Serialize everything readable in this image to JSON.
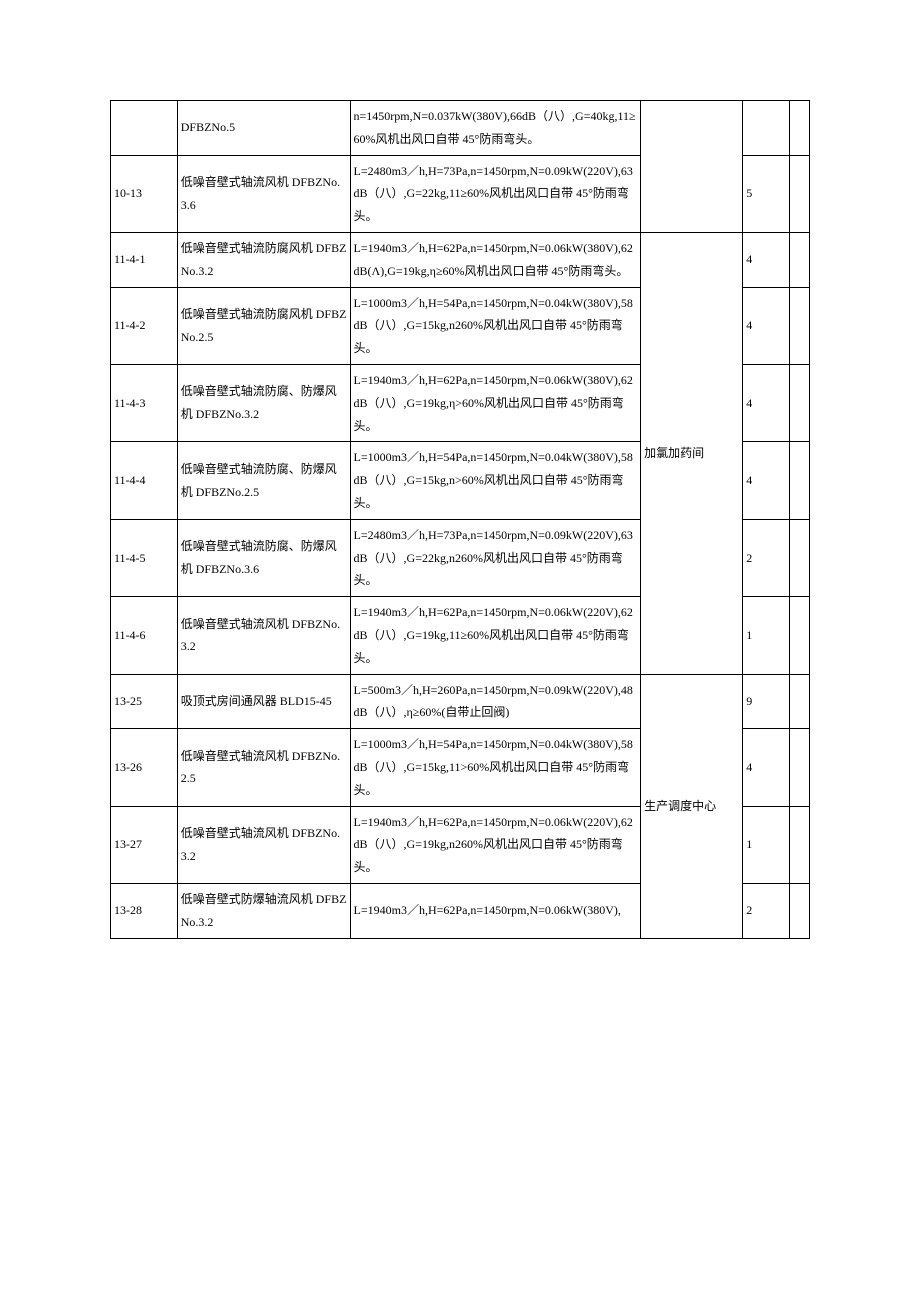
{
  "table": {
    "columns": [
      {
        "class": "col1",
        "width": "8.5%"
      },
      {
        "class": "col2",
        "width": "22%"
      },
      {
        "class": "col3",
        "width": "37%"
      },
      {
        "class": "col4",
        "width": "13%"
      },
      {
        "class": "col5",
        "width": "6%"
      },
      {
        "class": "col6",
        "width": "2.5%"
      }
    ],
    "rows": [
      {
        "cells": [
          {
            "text": "",
            "col": 1
          },
          {
            "text": "DFBZNo.5",
            "col": 2
          },
          {
            "text": "n=1450rpm,N=0.037kW(380V),66dB（八）,G=40kg,11≥60%风机出风口自带 45°防雨弯头。",
            "col": 3
          },
          {
            "text": "",
            "col": 4,
            "rowspan": 2
          },
          {
            "text": "",
            "col": 5
          },
          {
            "text": "",
            "col": 6
          }
        ]
      },
      {
        "cells": [
          {
            "text": "10-13",
            "col": 1
          },
          {
            "text": "低噪音壁式轴流风机 DFBZNo.3.6",
            "col": 2
          },
          {
            "text": "L=2480m3／h,H=73Pa,n=1450rpm,N=0.09kW(220V),63dB（八）,G=22kg,11≥60%风机出风口自带 45°防雨弯头。",
            "col": 3
          },
          {
            "text": "5",
            "col": 5
          },
          {
            "text": "",
            "col": 6
          }
        ]
      },
      {
        "cells": [
          {
            "text": "11-4-1",
            "col": 1
          },
          {
            "text": "低噪音壁式轴流防腐风机 DFBZNo.3.2",
            "col": 2
          },
          {
            "text": "L=1940m3／h,H=62Pa,n=1450rpm,N=0.06kW(380V),62dB(Λ),G=19kg,η≥60%风机出风口自带 45°防雨弯头。",
            "col": 3
          },
          {
            "text": "加氯加药间",
            "col": 4,
            "rowspan": 6
          },
          {
            "text": "4",
            "col": 5
          },
          {
            "text": "",
            "col": 6
          }
        ]
      },
      {
        "cells": [
          {
            "text": "11-4-2",
            "col": 1
          },
          {
            "text": "低噪音壁式轴流防腐风机 DFBZNo.2.5",
            "col": 2
          },
          {
            "text": "L=1000m3／h,H=54Pa,n=1450rpm,N=0.04kW(380V),58dB（八）,G=15kg,n260%风机出风口自带 45°防雨弯头。",
            "col": 3
          },
          {
            "text": "4",
            "col": 5
          },
          {
            "text": "",
            "col": 6
          }
        ]
      },
      {
        "cells": [
          {
            "text": "11-4-3",
            "col": 1
          },
          {
            "text": "低噪音壁式轴流防腐、防爆风机 DFBZNo.3.2",
            "col": 2
          },
          {
            "text": "L=1940m3／h,H=62Pa,n=1450rpm,N=0.06kW(380V),62dB（八）,G=19kg,η>60%风机出风口自带 45°防雨弯头。",
            "col": 3
          },
          {
            "text": "4",
            "col": 5
          },
          {
            "text": "",
            "col": 6
          }
        ]
      },
      {
        "cells": [
          {
            "text": "11-4-4",
            "col": 1
          },
          {
            "text": "低噪音壁式轴流防腐、防爆风机 DFBZNo.2.5",
            "col": 2
          },
          {
            "text": "L=1000m3／h,H=54Pa,n=1450rpm,N=0.04kW(380V),58dB（八）,G=15kg,n>60%风机出风口自带 45°防雨弯头。",
            "col": 3
          },
          {
            "text": "4",
            "col": 5
          },
          {
            "text": "",
            "col": 6
          }
        ]
      },
      {
        "cells": [
          {
            "text": "11-4-5",
            "col": 1
          },
          {
            "text": "低噪音壁式轴流防腐、防爆风机 DFBZNo.3.6",
            "col": 2
          },
          {
            "text": "L=2480m3／h,H=73Pa,n=1450rpm,N=0.09kW(220V),63dB（八）,G=22kg,n260%风机出风口自带 45°防雨弯头。",
            "col": 3
          },
          {
            "text": "2",
            "col": 5
          },
          {
            "text": "",
            "col": 6
          }
        ]
      },
      {
        "cells": [
          {
            "text": "11-4-6",
            "col": 1
          },
          {
            "text": "低噪音壁式轴流风机 DFBZNo.3.2",
            "col": 2
          },
          {
            "text": "L=1940m3／h,H=62Pa,n=1450rpm,N=0.06kW(220V),62dB（八）,G=19kg,11≥60%风机出风口自带 45°防雨弯头。",
            "col": 3
          },
          {
            "text": "1",
            "col": 5
          },
          {
            "text": "",
            "col": 6
          }
        ]
      },
      {
        "cells": [
          {
            "text": "13-25",
            "col": 1
          },
          {
            "text": "吸顶式房间通风器 BLD15-45",
            "col": 2
          },
          {
            "text": "L=500m3／h,H=260Pa,n=1450rpm,N=0.09kW(220V),48dB（八）,η≥60%(自带止回阀)",
            "col": 3
          },
          {
            "text": "生产调度中心",
            "col": 4,
            "rowspan": 4
          },
          {
            "text": "9",
            "col": 5
          },
          {
            "text": "",
            "col": 6
          }
        ]
      },
      {
        "cells": [
          {
            "text": "13-26",
            "col": 1
          },
          {
            "text": "低噪音壁式轴流风机 DFBZNo.2.5",
            "col": 2
          },
          {
            "text": "L=1000m3／h,H=54Pa,n=1450rpm,N=0.04kW(380V),58dB（八）,G=15kg,11>60%风机出风口自带 45°防雨弯头。",
            "col": 3
          },
          {
            "text": "4",
            "col": 5
          },
          {
            "text": "",
            "col": 6
          }
        ]
      },
      {
        "cells": [
          {
            "text": "13-27",
            "col": 1
          },
          {
            "text": "低噪音壁式轴流风机 DFBZNo.3.2",
            "col": 2
          },
          {
            "text": "L=1940m3／h,H=62Pa,n=1450rpm,N=0.06kW(220V),62dB（八）,G=19kg,n260%风机出风口自带 45°防雨弯头。",
            "col": 3
          },
          {
            "text": "1",
            "col": 5
          },
          {
            "text": "",
            "col": 6
          }
        ]
      },
      {
        "cells": [
          {
            "text": "13-28",
            "col": 1
          },
          {
            "text": "低噪音壁式防爆轴流风机 DFBZNo.3.2",
            "col": 2
          },
          {
            "text": "L=1940m3／h,H=62Pa,n=1450rpm,N=0.06kW(380V),",
            "col": 3
          },
          {
            "text": "2",
            "col": 5
          },
          {
            "text": "",
            "col": 6
          }
        ]
      }
    ],
    "border_color": "#000000",
    "background_color": "#ffffff",
    "font_family": "SimSun",
    "font_size": 12,
    "line_height": 1.9
  }
}
